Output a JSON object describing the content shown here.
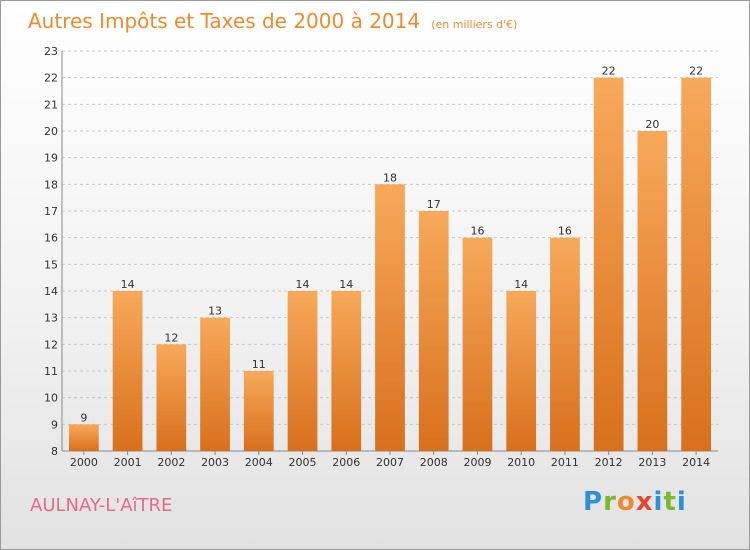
{
  "chart_data": {
    "type": "bar",
    "title": "Autres Impôts et Taxes de 2000 à 2014",
    "subtitle": "(en milliers d'€)",
    "xlabel": "",
    "ylabel": "",
    "categories": [
      "2000",
      "2001",
      "2002",
      "2003",
      "2004",
      "2005",
      "2006",
      "2007",
      "2008",
      "2009",
      "2010",
      "2011",
      "2012",
      "2013",
      "2014"
    ],
    "values": [
      9,
      14,
      12,
      13,
      11,
      14,
      14,
      18,
      17,
      16,
      14,
      16,
      22,
      20,
      22
    ],
    "ylim": [
      8,
      23
    ],
    "yticks": [
      "8",
      "9",
      "10",
      "11",
      "12",
      "13",
      "14",
      "15",
      "16",
      "17",
      "18",
      "19",
      "20",
      "21",
      "22",
      "23"
    ],
    "grid": true,
    "legend": "none"
  },
  "commune": "AULNAY-L'AîTRE",
  "brand": {
    "letters": [
      "P",
      "r",
      "o",
      "x",
      "i",
      "t",
      "i"
    ],
    "colors": [
      "#2e8fd8",
      "#7ab92e",
      "#f08a2c",
      "#e8452c",
      "#2e8fd8",
      "#7ab92e",
      "#2e8fd8"
    ]
  },
  "colors": {
    "title": "#f08a2c",
    "commune": "#e56a8a",
    "bar_top": "#f7a95a",
    "bar_bottom": "#d8701c"
  }
}
